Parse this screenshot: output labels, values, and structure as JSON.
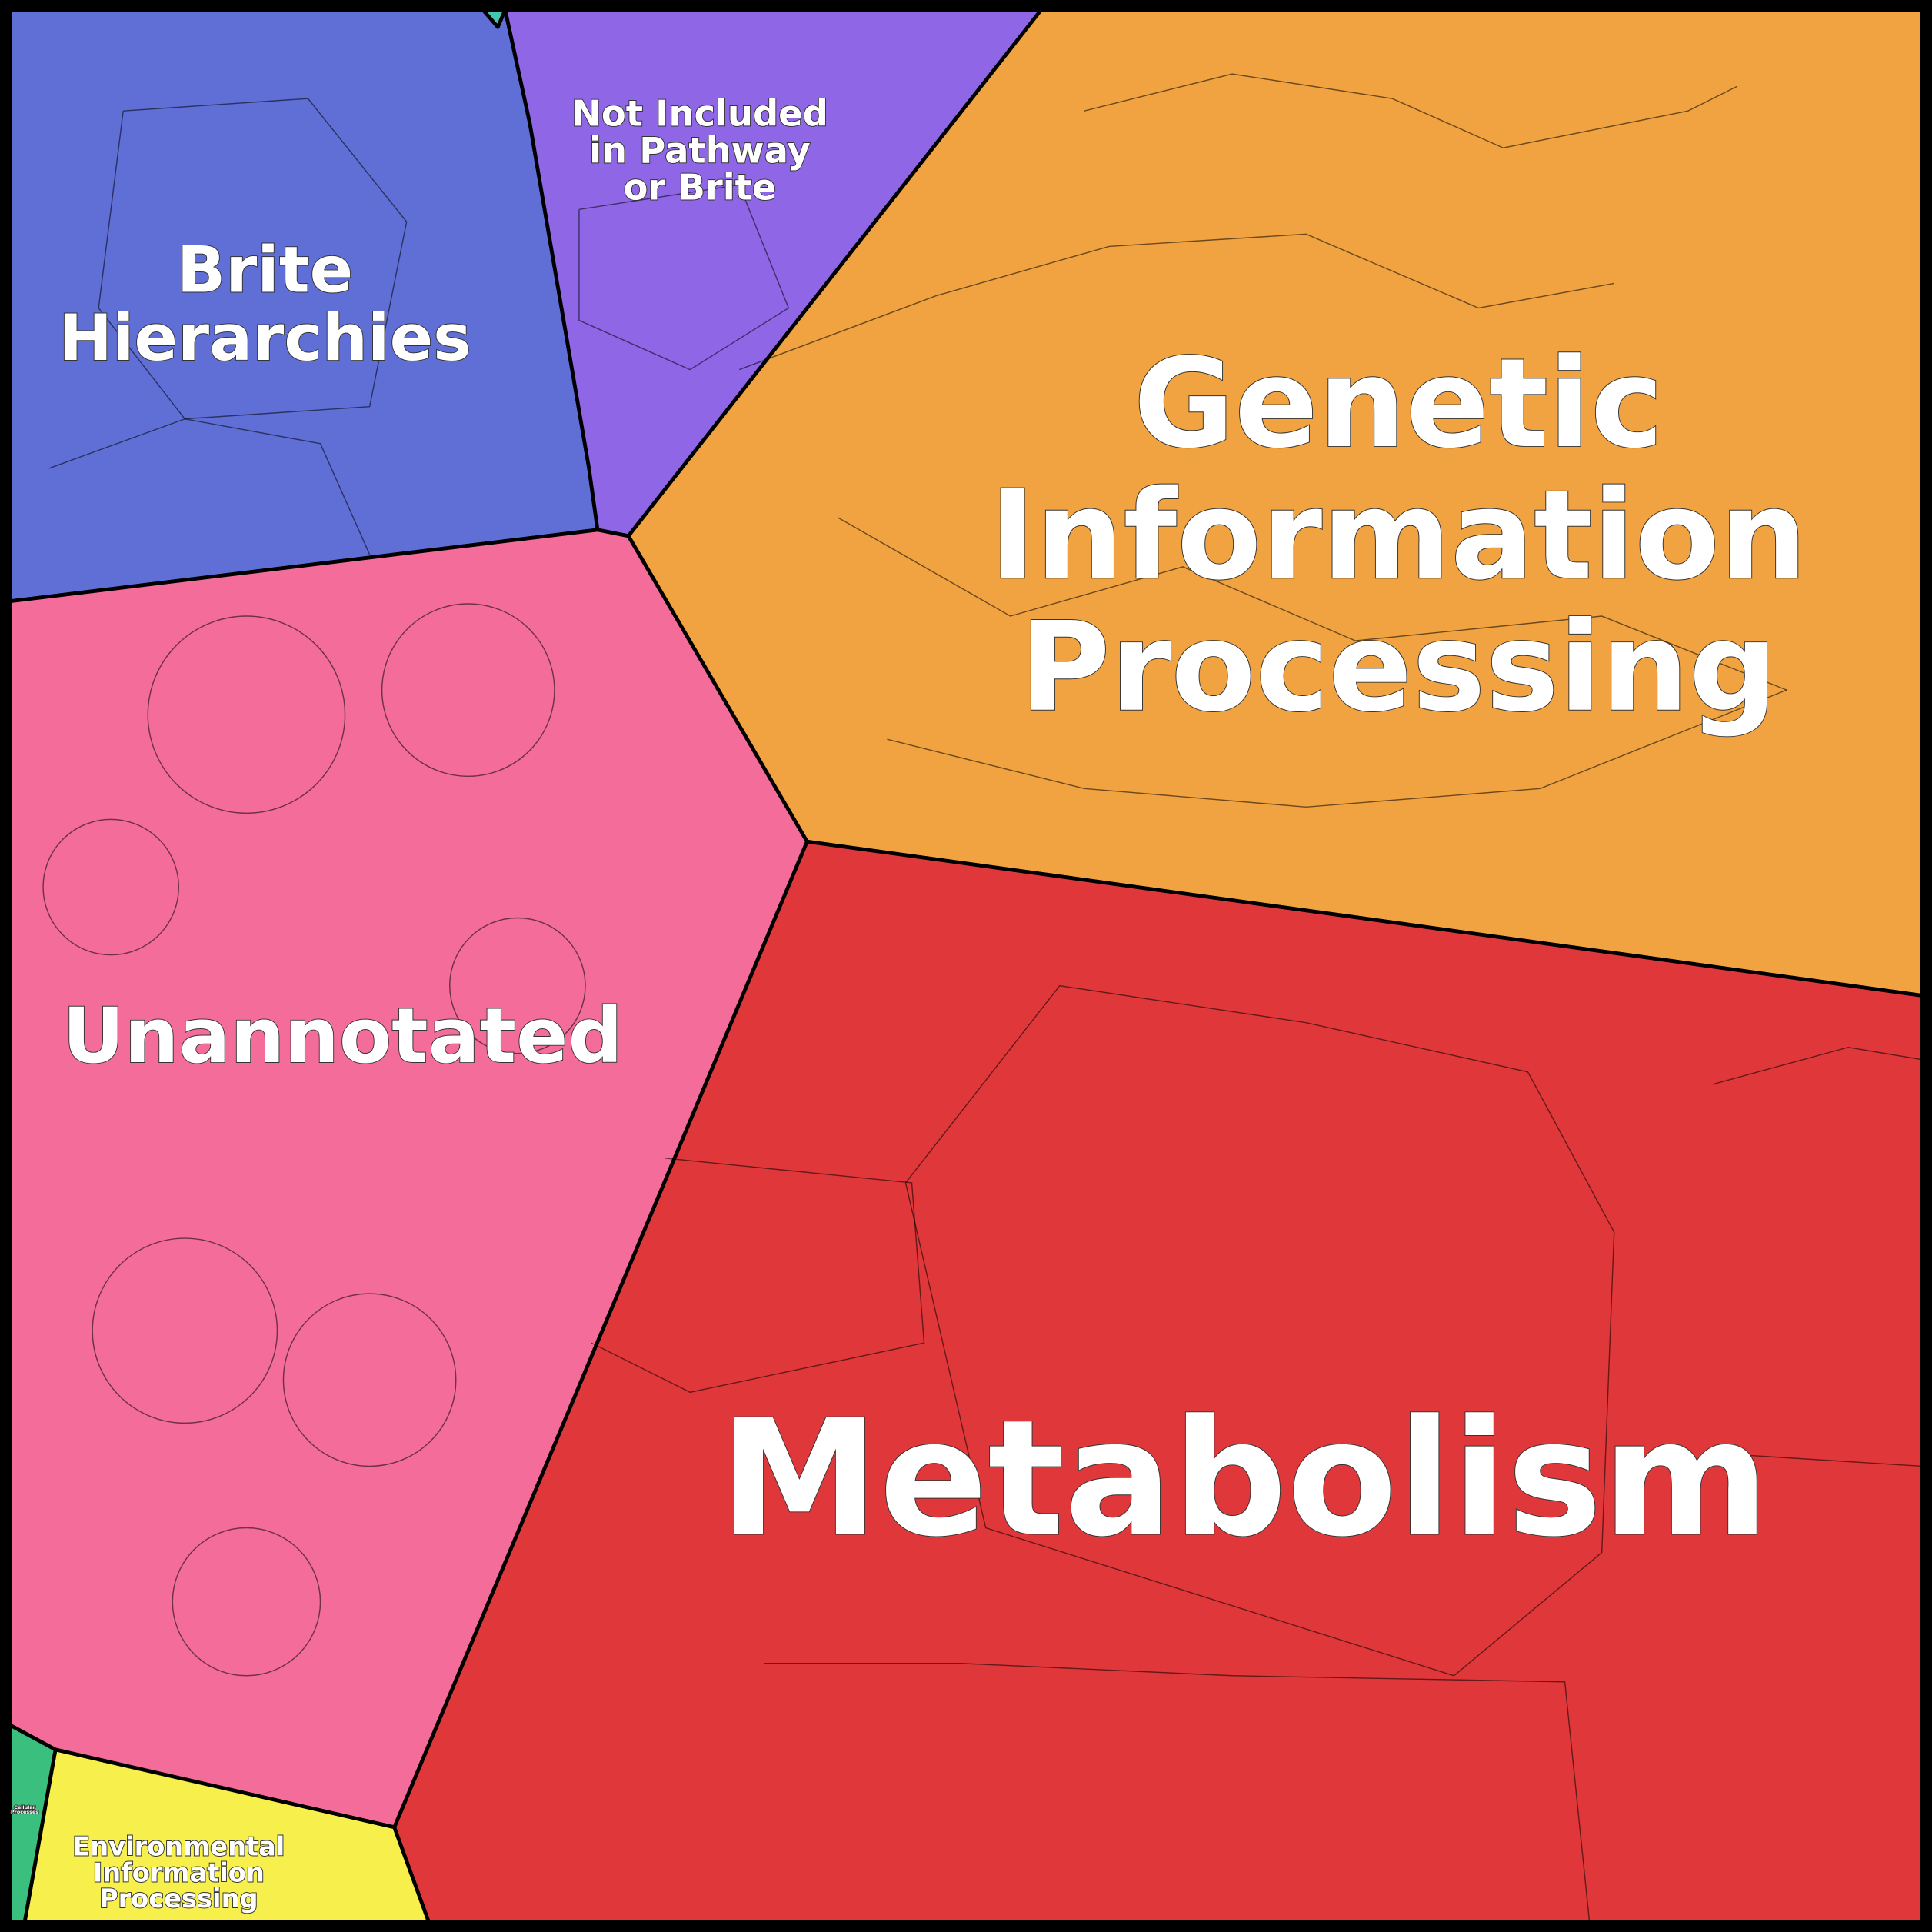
{
  "regions": [
    {
      "label_lines": [
        "Brite",
        "Hierarchies"
      ]
    },
    {
      "label_lines": [
        "Not Included",
        "in Pathway",
        "or Brite"
      ]
    },
    {
      "label_lines": [
        "Genetic",
        "Information",
        "Processing"
      ]
    },
    {
      "label_lines": [
        "Unannotated"
      ]
    },
    {
      "label_lines": [
        "Metabolism"
      ]
    },
    {
      "label_lines": [
        "Environmental",
        "Information",
        "Processing"
      ]
    },
    {
      "label_lines": [
        "Cellular",
        "Processes"
      ]
    }
  ]
}
